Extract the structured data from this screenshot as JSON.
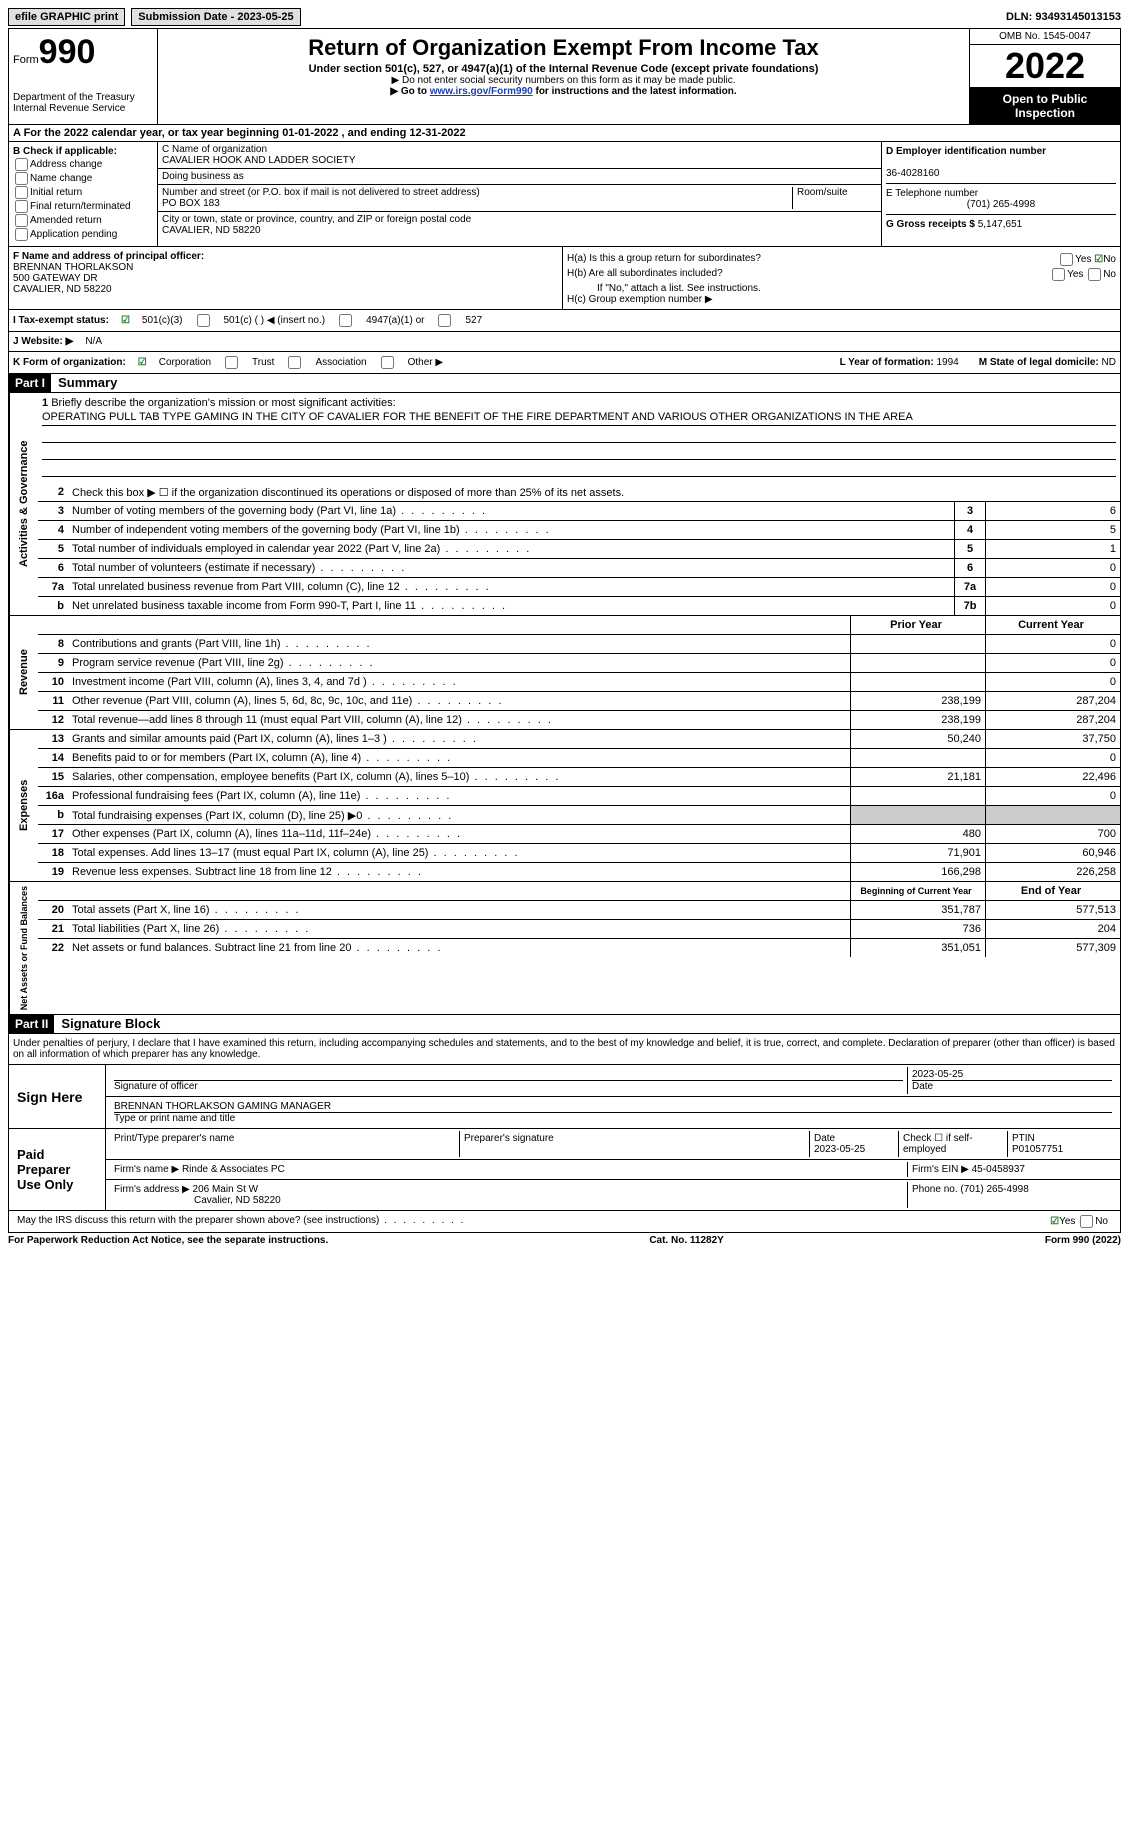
{
  "topbar": {
    "efile": "efile GRAPHIC print",
    "sub_date_label": "Submission Date - ",
    "sub_date": "2023-05-25",
    "dln_label": "DLN: ",
    "dln": "93493145013153"
  },
  "header": {
    "form_word": "Form",
    "form_num": "990",
    "dept": "Department of the Treasury",
    "irs": "Internal Revenue Service",
    "title": "Return of Organization Exempt From Income Tax",
    "sub1": "Under section 501(c), 527, or 4947(a)(1) of the Internal Revenue Code (except private foundations)",
    "sub2": "▶ Do not enter social security numbers on this form as it may be made public.",
    "sub3_pre": "▶ Go to ",
    "sub3_link": "www.irs.gov/Form990",
    "sub3_post": " for instructions and the latest information.",
    "omb": "OMB No. 1545-0047",
    "year": "2022",
    "open": "Open to Public Inspection"
  },
  "row_a": "A For the 2022 calendar year, or tax year beginning 01-01-2022   , and ending 12-31-2022",
  "col_b": {
    "hdr": "B Check if applicable:",
    "opts": [
      "Address change",
      "Name change",
      "Initial return",
      "Final return/terminated",
      "Amended return",
      "Application pending"
    ]
  },
  "col_c": {
    "name_lbl": "C Name of organization",
    "name": "CAVALIER HOOK AND LADDER SOCIETY",
    "dba_lbl": "Doing business as",
    "dba": "",
    "addr_lbl": "Number and street (or P.O. box if mail is not delivered to street address)",
    "room_lbl": "Room/suite",
    "addr": "PO BOX 183",
    "city_lbl": "City or town, state or province, country, and ZIP or foreign postal code",
    "city": "CAVALIER, ND  58220"
  },
  "col_d": {
    "ein_lbl": "D Employer identification number",
    "ein": "36-4028160",
    "tel_lbl": "E Telephone number",
    "tel": "(701) 265-4998",
    "gross_lbl": "G Gross receipts $ ",
    "gross": "5,147,651"
  },
  "col_f": {
    "lbl": "F Name and address of principal officer:",
    "name": "BRENNAN THORLAKSON",
    "addr1": "500 GATEWAY DR",
    "addr2": "CAVALIER, ND  58220"
  },
  "col_h": {
    "ha": "H(a)  Is this a group return for subordinates?",
    "hb": "H(b)  Are all subordinates included?",
    "hb_note": "If \"No,\" attach a list. See instructions.",
    "hc": "H(c)  Group exemption number ▶",
    "yes": "Yes",
    "no": "No"
  },
  "row_i": {
    "lbl": "I  Tax-exempt status:",
    "o1": "501(c)(3)",
    "o2": "501(c) (  ) ◀ (insert no.)",
    "o3": "4947(a)(1) or",
    "o4": "527"
  },
  "row_j": {
    "lbl": "J  Website: ▶",
    "val": "N/A"
  },
  "row_k": {
    "lbl": "K Form of organization:",
    "o1": "Corporation",
    "o2": "Trust",
    "o3": "Association",
    "o4": "Other ▶",
    "l_lbl": "L Year of formation: ",
    "l_val": "1994",
    "m_lbl": "M State of legal domicile: ",
    "m_val": "ND"
  },
  "part1": {
    "hdr": "Part I",
    "title": "Summary",
    "line1_lbl": "Briefly describe the organization's mission or most significant activities:",
    "line1_txt": "OPERATING PULL TAB TYPE GAMING IN THE CITY OF CAVALIER FOR THE BENEFIT OF THE FIRE DEPARTMENT AND VARIOUS OTHER ORGANIZATIONS IN THE AREA",
    "line2": "Check this box ▶ ☐ if the organization discontinued its operations or disposed of more than 25% of its net assets.",
    "lines_gov": [
      {
        "n": "3",
        "t": "Number of voting members of the governing body (Part VI, line 1a)",
        "box": "3",
        "v": "6"
      },
      {
        "n": "4",
        "t": "Number of independent voting members of the governing body (Part VI, line 1b)",
        "box": "4",
        "v": "5"
      },
      {
        "n": "5",
        "t": "Total number of individuals employed in calendar year 2022 (Part V, line 2a)",
        "box": "5",
        "v": "1"
      },
      {
        "n": "6",
        "t": "Total number of volunteers (estimate if necessary)",
        "box": "6",
        "v": "0"
      },
      {
        "n": "7a",
        "t": "Total unrelated business revenue from Part VIII, column (C), line 12",
        "box": "7a",
        "v": "0"
      },
      {
        "n": "b",
        "t": "Net unrelated business taxable income from Form 990-T, Part I, line 11",
        "box": "7b",
        "v": "0"
      }
    ],
    "col_hdrs": {
      "prior": "Prior Year",
      "current": "Current Year"
    },
    "lines_rev": [
      {
        "n": "8",
        "t": "Contributions and grants (Part VIII, line 1h)",
        "p": "",
        "c": "0"
      },
      {
        "n": "9",
        "t": "Program service revenue (Part VIII, line 2g)",
        "p": "",
        "c": "0"
      },
      {
        "n": "10",
        "t": "Investment income (Part VIII, column (A), lines 3, 4, and 7d )",
        "p": "",
        "c": "0"
      },
      {
        "n": "11",
        "t": "Other revenue (Part VIII, column (A), lines 5, 6d, 8c, 9c, 10c, and 11e)",
        "p": "238,199",
        "c": "287,204"
      },
      {
        "n": "12",
        "t": "Total revenue—add lines 8 through 11 (must equal Part VIII, column (A), line 12)",
        "p": "238,199",
        "c": "287,204"
      }
    ],
    "lines_exp": [
      {
        "n": "13",
        "t": "Grants and similar amounts paid (Part IX, column (A), lines 1–3 )",
        "p": "50,240",
        "c": "37,750"
      },
      {
        "n": "14",
        "t": "Benefits paid to or for members (Part IX, column (A), line 4)",
        "p": "",
        "c": "0"
      },
      {
        "n": "15",
        "t": "Salaries, other compensation, employee benefits (Part IX, column (A), lines 5–10)",
        "p": "21,181",
        "c": "22,496"
      },
      {
        "n": "16a",
        "t": "Professional fundraising fees (Part IX, column (A), line 11e)",
        "p": "",
        "c": "0"
      },
      {
        "n": "b",
        "t": "Total fundraising expenses (Part IX, column (D), line 25) ▶0",
        "p": "gray",
        "c": "gray"
      },
      {
        "n": "17",
        "t": "Other expenses (Part IX, column (A), lines 11a–11d, 11f–24e)",
        "p": "480",
        "c": "700"
      },
      {
        "n": "18",
        "t": "Total expenses. Add lines 13–17 (must equal Part IX, column (A), line 25)",
        "p": "71,901",
        "c": "60,946"
      },
      {
        "n": "19",
        "t": "Revenue less expenses. Subtract line 18 from line 12",
        "p": "166,298",
        "c": "226,258"
      }
    ],
    "col_hdrs2": {
      "beg": "Beginning of Current Year",
      "end": "End of Year"
    },
    "lines_net": [
      {
        "n": "20",
        "t": "Total assets (Part X, line 16)",
        "p": "351,787",
        "c": "577,513"
      },
      {
        "n": "21",
        "t": "Total liabilities (Part X, line 26)",
        "p": "736",
        "c": "204"
      },
      {
        "n": "22",
        "t": "Net assets or fund balances. Subtract line 21 from line 20",
        "p": "351,051",
        "c": "577,309"
      }
    ],
    "vtabs": {
      "gov": "Activities & Governance",
      "rev": "Revenue",
      "exp": "Expenses",
      "net": "Net Assets or Fund Balances"
    }
  },
  "part2": {
    "hdr": "Part II",
    "title": "Signature Block",
    "decl": "Under penalties of perjury, I declare that I have examined this return, including accompanying schedules and statements, and to the best of my knowledge and belief, it is true, correct, and complete. Declaration of preparer (other than officer) is based on all information of which preparer has any knowledge.",
    "sign_here": "Sign Here",
    "sig_officer": "Signature of officer",
    "sig_date": "2023-05-25",
    "date_lbl": "Date",
    "name_title": "BRENNAN THORLAKSON  GAMING MANAGER",
    "name_lbl": "Type or print name and title",
    "paid": "Paid Preparer Use Only",
    "prep_name_lbl": "Print/Type preparer's name",
    "prep_sig_lbl": "Preparer's signature",
    "prep_date_lbl": "Date",
    "prep_date": "2023-05-25",
    "check_lbl": "Check ☐ if self-employed",
    "ptin_lbl": "PTIN",
    "ptin": "P01057751",
    "firm_name_lbl": "Firm's name  ▶ ",
    "firm_name": "Rinde & Associates PC",
    "firm_ein_lbl": "Firm's EIN ▶ ",
    "firm_ein": "45-0458937",
    "firm_addr_lbl": "Firm's address ▶ ",
    "firm_addr": "206 Main St W",
    "firm_city": "Cavalier, ND  58220",
    "phone_lbl": "Phone no. ",
    "phone": "(701) 265-4998",
    "may_irs": "May the IRS discuss this return with the preparer shown above? (see instructions)",
    "yes": "Yes",
    "no": "No"
  },
  "footer": {
    "left": "For Paperwork Reduction Act Notice, see the separate instructions.",
    "mid": "Cat. No. 11282Y",
    "right": "Form 990 (2022)"
  }
}
